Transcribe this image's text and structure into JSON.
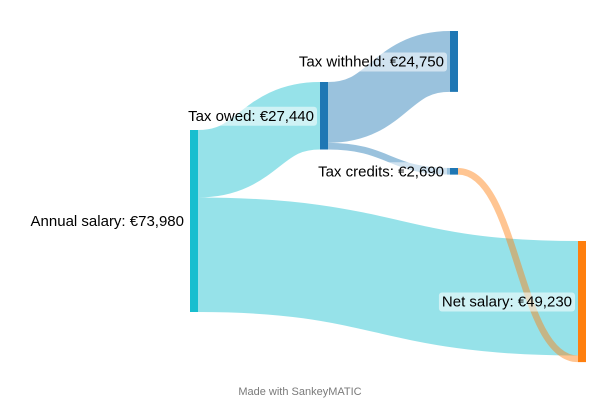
{
  "chart_data": {
    "type": "sankey",
    "nodes": [
      {
        "id": "annual",
        "label": "Annual salary: €73,980",
        "value": 73980,
        "color": "#17becf"
      },
      {
        "id": "owed",
        "label": "Tax owed: €27,440",
        "value": 27440,
        "color": "#1f77b4"
      },
      {
        "id": "withheld",
        "label": "Tax withheld: €24,750",
        "value": 24750,
        "color": "#1f77b4"
      },
      {
        "id": "credits",
        "label": "Tax credits: €2,690",
        "value": 2690,
        "color": "#1f77b4"
      },
      {
        "id": "net",
        "label": "Net salary: €49,230",
        "value": 49230,
        "color": "#ff7f0e"
      }
    ],
    "links": [
      {
        "source": "annual",
        "target": "owed",
        "value": 27440,
        "color": "#17becf"
      },
      {
        "source": "annual",
        "target": "net",
        "value": 46540,
        "color": "#17becf"
      },
      {
        "source": "owed",
        "target": "withheld",
        "value": 24750,
        "color": "#1f77b4"
      },
      {
        "source": "owed",
        "target": "credits",
        "value": 2690,
        "color": "#1f77b4"
      },
      {
        "source": "credits",
        "target": "net",
        "value": 2690,
        "color": "#ff7f0e"
      }
    ]
  },
  "footer": {
    "credit": "Made with SankeyMATIC"
  }
}
